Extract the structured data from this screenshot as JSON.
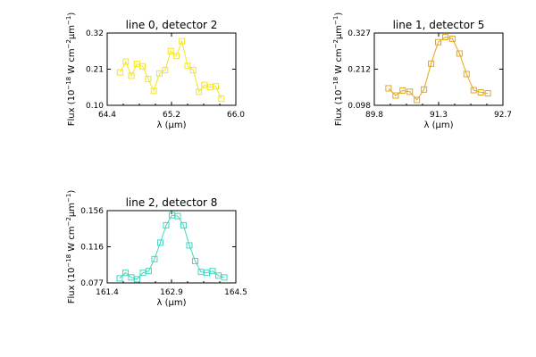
{
  "chart_data": [
    {
      "type": "scatter",
      "title": "line 0, detector 2",
      "xlabel": "λ (μm)",
      "ylabel": "Flux (10⁻¹⁸ W cm⁻²μm⁻¹)",
      "xlim": [
        64.4,
        66.0
      ],
      "ylim": [
        0.1,
        0.32
      ],
      "xticks": [
        "64.4",
        "65.2",
        "66.0"
      ],
      "yticks": [
        "0.10",
        "0.21",
        "0.32"
      ],
      "color": "#f5e61e",
      "series": [
        {
          "x": [
            64.56,
            64.63,
            64.7,
            64.77,
            64.84,
            64.91,
            64.98,
            65.05,
            65.12,
            65.19,
            65.26,
            65.33,
            65.4,
            65.47,
            65.54,
            65.61,
            65.68,
            65.75,
            65.82
          ],
          "y": [
            0.2,
            0.233,
            0.19,
            0.226,
            0.219,
            0.18,
            0.144,
            0.197,
            0.207,
            0.265,
            0.25,
            0.295,
            0.22,
            0.207,
            0.141,
            0.162,
            0.155,
            0.158,
            0.12
          ]
        }
      ]
    },
    {
      "type": "scatter",
      "title": "line 1, detector 5",
      "xlabel": "λ (μm)",
      "ylabel": "Flux (10⁻¹⁸ W cm⁻²μm⁻¹)",
      "xlim": [
        89.8,
        92.7
      ],
      "ylim": [
        0.098,
        0.327
      ],
      "xticks": [
        "89.8",
        "91.3",
        "92.7"
      ],
      "yticks": [
        "0.098",
        "0.212",
        "0.327"
      ],
      "color": "#e6a614",
      "series": [
        {
          "x": [
            90.12,
            90.28,
            90.44,
            90.6,
            90.76,
            90.92,
            91.08,
            91.24,
            91.4,
            91.56,
            91.72,
            91.88,
            92.04,
            92.2,
            92.36
          ],
          "y": [
            0.152,
            0.129,
            0.145,
            0.141,
            0.115,
            0.148,
            0.23,
            0.298,
            0.314,
            0.309,
            0.262,
            0.197,
            0.146,
            0.139,
            0.136
          ]
        }
      ]
    },
    {
      "type": "scatter",
      "title": "line 2, detector 8",
      "xlabel": "λ (μm)",
      "ylabel": "Flux (10⁻¹⁸ W cm⁻²μm⁻¹)",
      "xlim": [
        161.4,
        164.5
      ],
      "ylim": [
        0.077,
        0.156
      ],
      "xticks": [
        "161.4",
        "162.9",
        "164.5"
      ],
      "yticks": [
        "0.077",
        "0.116",
        "0.156"
      ],
      "color": "#3fd9bf",
      "series": [
        {
          "x": [
            161.7,
            161.84,
            161.98,
            162.12,
            162.26,
            162.4,
            162.54,
            162.68,
            162.82,
            162.96,
            163.1,
            163.24,
            163.38,
            163.52,
            163.66,
            163.8,
            163.94,
            164.08,
            164.22
          ],
          "y": [
            0.082,
            0.088,
            0.083,
            0.081,
            0.088,
            0.09,
            0.103,
            0.121,
            0.14,
            0.151,
            0.15,
            0.14,
            0.118,
            0.101,
            0.089,
            0.088,
            0.09,
            0.085,
            0.083
          ]
        }
      ]
    }
  ]
}
